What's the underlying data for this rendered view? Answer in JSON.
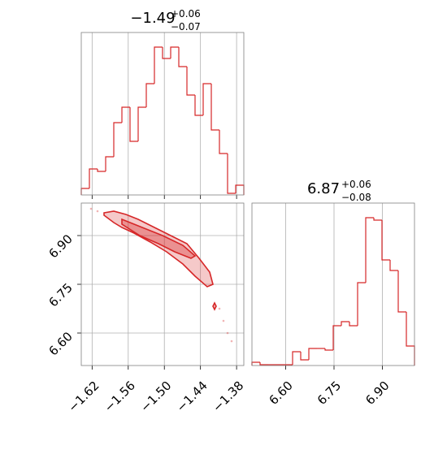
{
  "chart_data": [
    {
      "type": "histogram",
      "color": "#d62728",
      "title": {
        "value": "−1.49",
        "upper": "+0.06",
        "lower": "−0.07"
      },
      "bins": [
        -1.638,
        -1.6245,
        -1.611,
        -1.5975,
        -1.584,
        -1.5705,
        -1.557,
        -1.5435,
        -1.53,
        -1.5165,
        -1.503,
        -1.4895,
        -1.476,
        -1.4625,
        -1.449,
        -1.4355,
        -1.422,
        -1.4085,
        -1.395,
        -1.3815,
        -1.368
      ],
      "values": [
        8,
        32,
        29,
        47,
        89,
        108,
        66,
        108,
        137,
        182,
        168,
        182,
        158,
        123,
        98,
        137,
        80,
        51,
        2,
        12
      ],
      "xlim": [
        -1.638,
        -1.368
      ],
      "ylim": [
        0,
        200
      ],
      "xticks": [
        -1.62,
        -1.56,
        -1.5,
        -1.44,
        -1.38
      ],
      "grid": true
    },
    {
      "type": "contour",
      "color": "#d62728",
      "xlim": [
        -1.638,
        -1.368
      ],
      "ylim": [
        6.5,
        7.0
      ],
      "xticks": [
        {
          "value": -1.62,
          "label": "−1.62"
        },
        {
          "value": -1.56,
          "label": "−1.56"
        },
        {
          "value": -1.5,
          "label": "−1.50"
        },
        {
          "value": -1.44,
          "label": "−1.44"
        },
        {
          "value": -1.38,
          "label": "−1.38"
        }
      ],
      "yticks": [
        {
          "value": 6.6,
          "label": "6.60"
        },
        6.75,
        {
          "value": 6.9,
          "label": "6.90"
        }
      ],
      "grid": true,
      "contours": [
        {
          "x": [
            -1.6002,
            -1.584,
            -1.5638,
            -1.5435,
            -1.5165,
            -1.4895,
            -1.4625,
            -1.4423,
            -1.4247,
            -1.4193,
            -1.4288,
            -1.449,
            -1.4693,
            -1.4963,
            -1.5233,
            -1.5503,
            -1.5705,
            -1.584,
            -1.6002
          ],
          "y": [
            6.97,
            6.975,
            6.965,
            6.95,
            6.925,
            6.9,
            6.875,
            6.83,
            6.7875,
            6.75,
            6.7425,
            6.775,
            6.8125,
            6.85,
            6.88,
            6.9075,
            6.925,
            6.94,
            6.9625
          ]
        },
        {
          "x": [
            -1.5705,
            -1.5368,
            -1.503,
            -1.4693,
            -1.449,
            -1.4558,
            -1.4828,
            -1.5098,
            -1.5408,
            -1.5705
          ],
          "y": [
            6.95,
            6.925,
            6.9,
            6.87,
            6.8375,
            6.83,
            6.85,
            6.875,
            6.9,
            6.935
          ]
        },
        {
          "x": [
            -1.4166,
            -1.4139,
            -1.4166,
            -1.4193
          ],
          "y": [
            6.6925,
            6.6825,
            6.6725,
            6.6825
          ]
        }
      ],
      "points": {
        "x": [
          -1.6218,
          -1.611,
          -1.4085,
          -1.4018,
          -1.395,
          -1.3883
        ],
        "y": [
          6.9825,
          6.975,
          6.675,
          6.6375,
          6.6,
          6.575
        ]
      }
    },
    {
      "type": "histogram",
      "color": "#d62728",
      "title": {
        "value": "6.87",
        "upper": "+0.06",
        "lower": "−0.08"
      },
      "bins": [
        6.495,
        6.52025,
        6.5455,
        6.57075,
        6.596,
        6.62125,
        6.6465,
        6.67175,
        6.697,
        6.72225,
        6.7475,
        6.77275,
        6.798,
        6.82325,
        6.8485,
        6.87375,
        6.899,
        6.92425,
        6.9495,
        6.97475,
        7.0
      ],
      "values": [
        4,
        1,
        1,
        1,
        1,
        17,
        7,
        21,
        21,
        19,
        49,
        54,
        49,
        102,
        182,
        179,
        130,
        117,
        66,
        24
      ],
      "xlim": [
        6.495,
        7.0
      ],
      "ylim": [
        0,
        200
      ],
      "xticks": [
        {
          "value": 6.6,
          "label": "6.60"
        },
        6.75,
        {
          "value": 6.9,
          "label": "6.90"
        }
      ],
      "grid": true
    }
  ]
}
